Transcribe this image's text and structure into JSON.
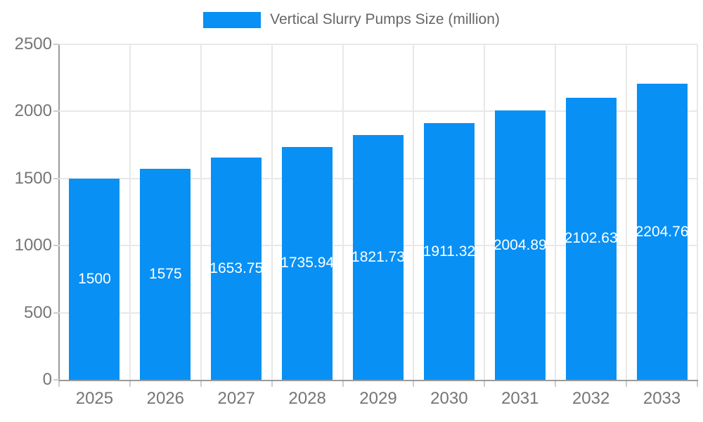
{
  "legend": {
    "label": "Vertical Slurry Pumps Size (million)",
    "swatch_color": "#0890f5"
  },
  "chart_data": {
    "type": "bar",
    "title": "Vertical Slurry Pumps Size (million)",
    "series_name": "Vertical Slurry Pumps Size (million)",
    "categories": [
      "2025",
      "2026",
      "2027",
      "2028",
      "2029",
      "2030",
      "2031",
      "2032",
      "2033"
    ],
    "values": [
      1500,
      1575,
      1653.75,
      1735.94,
      1821.73,
      1911.32,
      2004.89,
      2102.63,
      2204.76
    ],
    "value_labels": [
      "1500",
      "1575",
      "1653.75",
      "1735.94",
      "1821.73",
      "1911.32",
      "2004.89",
      "2102.63",
      "2204.76"
    ],
    "xlabel": "",
    "ylabel": "",
    "ylim": [
      0,
      2500
    ],
    "yticks": [
      0,
      500,
      1000,
      1500,
      2000,
      2500
    ],
    "ytick_labels": [
      "0",
      "500",
      "1000",
      "1500",
      "2000",
      "2500"
    ],
    "grid": true,
    "legend_position": "top",
    "bar_color": "#0890f5",
    "value_label_color": "#ffffff",
    "axis_label_color": "#757575",
    "grid_color": "#e8e8e8",
    "axis_line_color": "#9a9a9a"
  }
}
